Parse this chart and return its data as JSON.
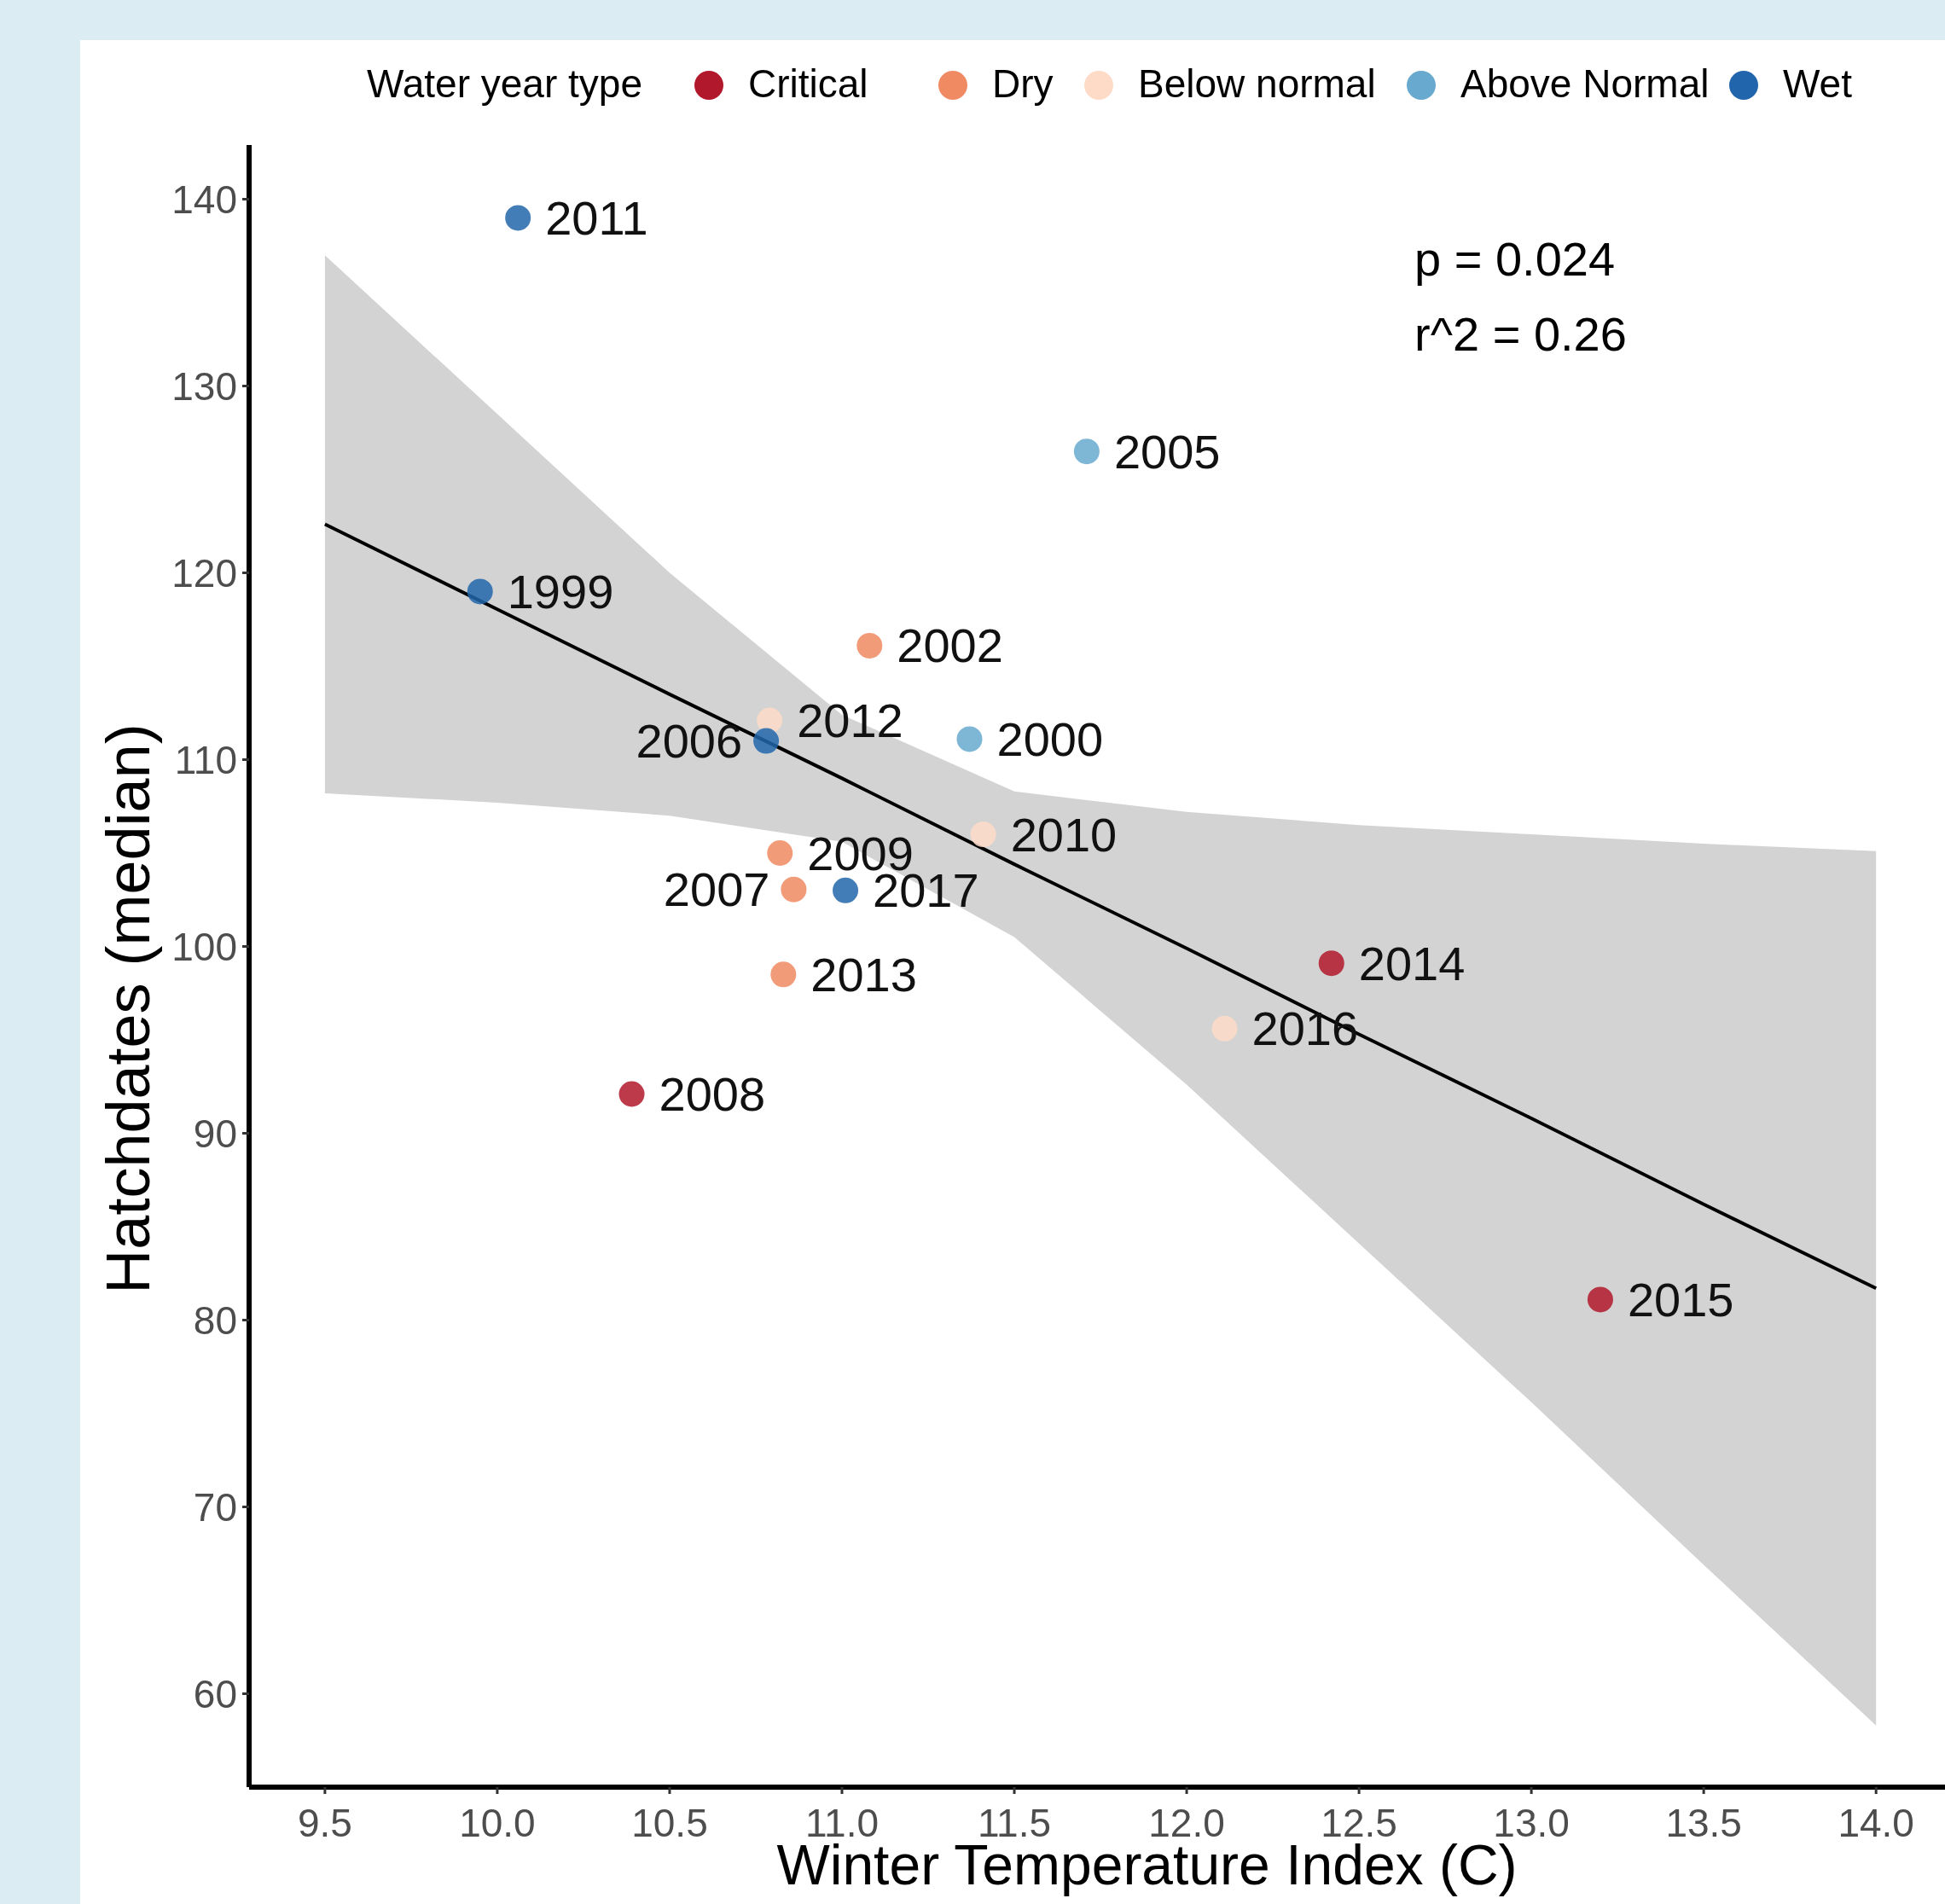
{
  "chart_data": {
    "type": "scatter",
    "xlabel": "Winter Temperature Index (C)",
    "ylabel": "Hatchdates (median)",
    "legend_title": "Water year type",
    "legend": "top",
    "marker": "circle",
    "xlim": [
      9.28,
      14.2
    ],
    "ylim": [
      55,
      142.9
    ],
    "xticks": [
      9.5,
      {
        "value": 10,
        "label": "10.0"
      },
      10.5,
      {
        "value": 11,
        "label": "11.0"
      },
      11.5,
      {
        "value": 12,
        "label": "12.0"
      },
      12.5,
      {
        "value": 13,
        "label": "13.0"
      },
      13.5,
      {
        "value": 14,
        "label": "14.0"
      }
    ],
    "yticks": [
      60,
      70,
      80,
      90,
      100,
      110,
      120,
      130,
      140
    ],
    "series": [
      {
        "type": "line",
        "marker": "none",
        "color": "#000000",
        "x": [
          9.5,
          10,
          10.5,
          11,
          11.5,
          12,
          12.5,
          13,
          13.5,
          14
        ],
        "values": [
          122.6,
          118.05,
          113.5,
          109.0,
          104.4,
          99.9,
          95.3,
          90.8,
          86.2,
          81.7
        ],
        "lower": [
          108.2,
          107.7,
          107.0,
          105.6,
          100.5,
          92.6,
          84.1,
          75.6,
          66.9,
          58.3
        ],
        "upper": [
          137.0,
          128.5,
          120.0,
          112.4,
          108.3,
          107.2,
          106.5,
          106.0,
          105.5,
          105.1
        ]
      },
      {
        "name": "Critical",
        "color": "#b2182b",
        "x": [
          10.39,
          12.42,
          13.2
        ],
        "values": [
          92.1,
          99.1,
          81.1
        ]
      },
      {
        "name": "Dry",
        "color": "#ef8a62",
        "x": [
          11.08,
          10.82,
          10.86,
          10.83
        ],
        "values": [
          116.1,
          105.0,
          103.05,
          98.5
        ]
      },
      {
        "name": "Below normal",
        "color": "#fddbc7",
        "x": [
          10.79,
          11.41,
          12.11
        ],
        "values": [
          112.1,
          106.0,
          95.6
        ]
      },
      {
        "name": "Above Normal",
        "color": "#67a9cf",
        "x": [
          11.71,
          11.37
        ],
        "values": [
          126.5,
          111.1
        ]
      },
      {
        "name": "Wet",
        "color": "#2166ac",
        "x": [
          10.06,
          9.95,
          10.78,
          11.01
        ],
        "values": [
          139.0,
          119.0,
          111.0,
          103.0
        ]
      }
    ],
    "annotations": [
      "p = 0.024",
      "r^2 = 0.26",
      {
        "text": "2011",
        "x": 10.06,
        "y": 139.0
      },
      {
        "text": "2005",
        "x": 11.71,
        "y": 126.5
      },
      {
        "text": "1999",
        "x": 9.95,
        "y": 119.0
      },
      {
        "text": "2002",
        "x": 11.08,
        "y": 116.1
      },
      {
        "text": "2012",
        "x": 10.79,
        "y": 112.1
      },
      {
        "text": "2006",
        "x": 10.78,
        "y": 111.0
      },
      {
        "text": "2000",
        "x": 11.37,
        "y": 111.1
      },
      {
        "text": "2010",
        "x": 11.41,
        "y": 106.0
      },
      {
        "text": "2009",
        "x": 10.82,
        "y": 105.0
      },
      {
        "text": "2007",
        "x": 10.86,
        "y": 103.05
      },
      {
        "text": "2017",
        "x": 11.01,
        "y": 103.0
      },
      {
        "text": "2013",
        "x": 10.83,
        "y": 98.5
      },
      {
        "text": "2014",
        "x": 12.42,
        "y": 99.1
      },
      {
        "text": "2016",
        "x": 12.11,
        "y": 95.6
      },
      {
        "text": "2008",
        "x": 10.39,
        "y": 92.1
      },
      {
        "text": "2015",
        "x": 13.2,
        "y": 81.1
      }
    ]
  }
}
